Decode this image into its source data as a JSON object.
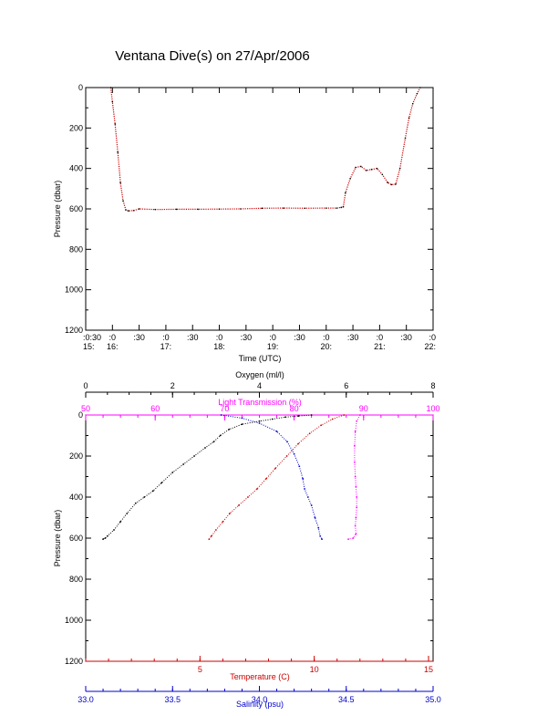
{
  "title": "Ventana Dive(s) on 27/Apr/2006",
  "colors": {
    "axis": "#000000",
    "depth": "#cc0000",
    "temperature": "#cc0000",
    "salinity": "#0000cc",
    "oxygen": "#000000",
    "transmission": "#ff00ff"
  },
  "chart_data": [
    {
      "type": "line",
      "title": "Ventana Dive(s) on 27/Apr/2006",
      "xlabel": "Time (UTC)",
      "ylabel": "Pressure (dbar)",
      "xlim": [
        15.5,
        22.0
      ],
      "ylim": [
        1200,
        0
      ],
      "x_ticks": [
        {
          "x": 15.5,
          "top": ":0:30",
          "bottom": "15:"
        },
        {
          "x": 16.0,
          "top": ":0",
          "bottom": "16:"
        },
        {
          "x": 16.5,
          "top": ":30",
          "bottom": ""
        },
        {
          "x": 17.0,
          "top": ":0",
          "bottom": "17:"
        },
        {
          "x": 17.5,
          "top": ":30",
          "bottom": ""
        },
        {
          "x": 18.0,
          "top": ":0",
          "bottom": "18:"
        },
        {
          "x": 18.5,
          "top": ":30",
          "bottom": ""
        },
        {
          "x": 19.0,
          "top": ":0",
          "bottom": "19:"
        },
        {
          "x": 19.5,
          "top": ":30",
          "bottom": ""
        },
        {
          "x": 20.0,
          "top": ":0",
          "bottom": "20:"
        },
        {
          "x": 20.5,
          "top": ":30",
          "bottom": ""
        },
        {
          "x": 21.0,
          "top": ":0",
          "bottom": "21:"
        },
        {
          "x": 21.5,
          "top": ":30",
          "bottom": ""
        },
        {
          "x": 22.0,
          "top": ":0",
          "bottom": "22:"
        }
      ],
      "y_ticks": [
        {
          "value": 0,
          "label": "0"
        },
        {
          "value": 200,
          "label": "200"
        },
        {
          "value": 400,
          "label": "400"
        },
        {
          "value": 600,
          "label": "600"
        },
        {
          "value": 800,
          "label": "800"
        },
        {
          "value": 1000,
          "label": "1000"
        },
        {
          "value": 1200,
          "label": "1200"
        }
      ],
      "series": [
        {
          "x": [
            15.97,
            16.0,
            16.05,
            16.1,
            16.15,
            16.2,
            16.25,
            16.3,
            16.4,
            16.5,
            16.8,
            17.2,
            17.6,
            18.0,
            18.4,
            18.8,
            19.2,
            19.6,
            20.0,
            20.2,
            20.28,
            20.32,
            20.36,
            20.45,
            20.55,
            20.65,
            20.75,
            20.85,
            20.95,
            21.05,
            21.15,
            21.22,
            21.3,
            21.38,
            21.48,
            21.55,
            21.62,
            21.7,
            21.76
          ],
          "y": [
            0,
            70,
            180,
            320,
            470,
            560,
            605,
            610,
            608,
            600,
            603,
            602,
            602,
            601,
            600,
            597,
            596,
            597,
            596,
            596,
            593,
            590,
            520,
            450,
            395,
            390,
            410,
            405,
            400,
            430,
            470,
            480,
            478,
            400,
            250,
            150,
            80,
            30,
            0
          ]
        }
      ]
    },
    {
      "type": "scatter",
      "ylabel": "Pressure (dbar)",
      "ylim": [
        1200,
        0
      ],
      "y_ticks": [
        {
          "value": 0,
          "label": "0"
        },
        {
          "value": 200,
          "label": "200"
        },
        {
          "value": 400,
          "label": "400"
        },
        {
          "value": 600,
          "label": "600"
        },
        {
          "value": 800,
          "label": "800"
        },
        {
          "value": 1000,
          "label": "1000"
        },
        {
          "value": 1200,
          "label": "1200"
        }
      ],
      "axes": {
        "oxygen": {
          "label": "Oxygen (ml/l)",
          "lim": [
            0,
            8
          ],
          "ticks": [
            {
              "value": 0,
              "label": "0"
            },
            {
              "value": 2,
              "label": "2"
            },
            {
              "value": 4,
              "label": "4"
            },
            {
              "value": 6,
              "label": "6"
            },
            {
              "value": 8,
              "label": "8"
            }
          ]
        },
        "transmission": {
          "label": "Light Transmission (%)",
          "lim": [
            50,
            100
          ],
          "ticks": [
            {
              "value": 50,
              "label": "50"
            },
            {
              "value": 60,
              "label": "60"
            },
            {
              "value": 70,
              "label": "70"
            },
            {
              "value": 80,
              "label": "80"
            },
            {
              "value": 90,
              "label": "90"
            },
            {
              "value": 100,
              "label": "100"
            }
          ]
        },
        "temperature": {
          "label": "Temperature (C)",
          "lim": [
            0,
            15.2
          ],
          "ticks": [
            {
              "value": 5,
              "label": "5"
            },
            {
              "value": 10,
              "label": "10"
            },
            {
              "value": 15,
              "label": "15"
            }
          ]
        },
        "salinity": {
          "label": "Salinity (psu)",
          "lim": [
            33.0,
            35.0
          ],
          "ticks": [
            {
              "value": 33.0,
              "label": "33.0"
            },
            {
              "value": 33.5,
              "label": "33.5"
            },
            {
              "value": 34.0,
              "label": "34.0"
            },
            {
              "value": 34.5,
              "label": "34.5"
            },
            {
              "value": 35.0,
              "label": "35.0"
            }
          ]
        }
      },
      "series": [
        {
          "axis": "oxygen",
          "x": [
            5.2,
            4.9,
            4.6,
            4.3,
            4.0,
            3.6,
            3.3,
            3.1,
            2.95,
            2.75,
            2.5,
            2.25,
            2.0,
            1.75,
            1.55,
            1.35,
            1.15,
            0.95,
            0.8,
            0.65,
            0.5,
            0.45,
            0.4
          ],
          "y": [
            0,
            5,
            10,
            20,
            30,
            45,
            70,
            100,
            130,
            160,
            200,
            240,
            280,
            330,
            370,
            400,
            430,
            480,
            520,
            560,
            590,
            600,
            605
          ]
        },
        {
          "axis": "temperature",
          "x": [
            11.3,
            10.8,
            10.3,
            9.8,
            9.3,
            8.8,
            8.3,
            7.9,
            7.5,
            7.1,
            6.7,
            6.3,
            6.0,
            5.7,
            5.5,
            5.4
          ],
          "y": [
            0,
            20,
            50,
            90,
            140,
            200,
            260,
            310,
            360,
            400,
            440,
            480,
            520,
            560,
            590,
            605
          ]
        },
        {
          "axis": "salinity",
          "x": [
            33.78,
            33.9,
            34.0,
            34.1,
            34.16,
            34.2,
            34.23,
            34.25,
            34.26,
            34.28,
            34.3,
            34.32,
            34.34,
            34.35,
            34.36
          ],
          "y": [
            0,
            15,
            40,
            80,
            130,
            190,
            250,
            310,
            360,
            400,
            440,
            500,
            550,
            590,
            605
          ]
        },
        {
          "axis": "transmission",
          "x": [
            89.5,
            89.0,
            88.8,
            88.7,
            88.7,
            88.8,
            88.9,
            89.0,
            89.0,
            88.9,
            88.8,
            88.9,
            88.5,
            87.8
          ],
          "y": [
            0,
            30,
            80,
            150,
            230,
            300,
            350,
            400,
            450,
            500,
            540,
            580,
            600,
            605
          ]
        }
      ]
    }
  ]
}
